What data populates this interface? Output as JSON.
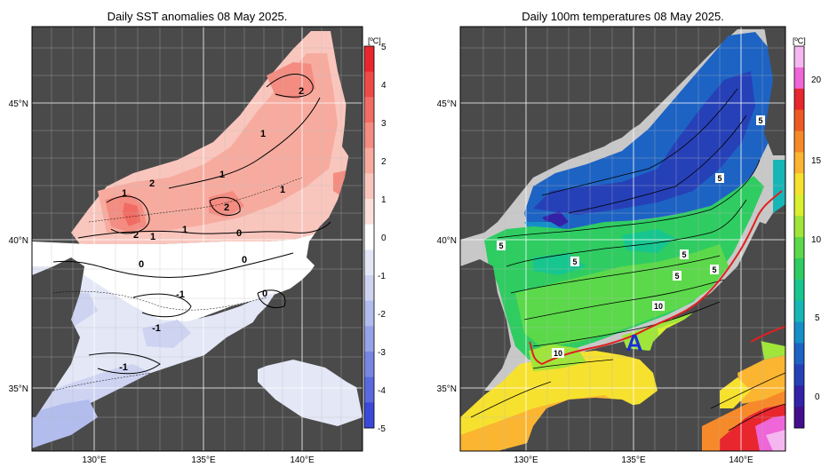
{
  "left_panel": {
    "title": "Daily SST anomalies 08 May 2025.",
    "colorbar": {
      "unit": "[ºC]",
      "ticks": [
        "5",
        "4",
        "3",
        "2",
        "1",
        "0",
        "-1",
        "-2",
        "-3",
        "-4",
        "-5"
      ],
      "colors_top_to_bottom": [
        "#e8262e",
        "#ee4a47",
        "#f26c63",
        "#f48c81",
        "#f7ab9f",
        "#f9c6bd",
        "#fbe0da",
        "#ffffff",
        "#e4e7f6",
        "#cdd3f1",
        "#b2bced",
        "#96a3e8",
        "#7886e2",
        "#5a69dd",
        "#3a49d7"
      ]
    },
    "contour_labels": [
      "2",
      "1",
      "1",
      "2",
      "1",
      "2",
      "1",
      "1",
      "2",
      "1",
      "0",
      "0",
      "0",
      "-1",
      "-1",
      "-1",
      "0"
    ],
    "lat_labels": [
      "45°N",
      "40°N",
      "35°N"
    ],
    "lon_labels": [
      "130°E",
      "135°E",
      "140°E"
    ]
  },
  "right_panel": {
    "title": "Daily 100m temperatures 08 May 2025.",
    "colorbar": {
      "unit": "[ºC]",
      "ticks": [
        "20",
        "15",
        "10",
        "5",
        "0"
      ],
      "colors_top_to_bottom": [
        "#f5b7f0",
        "#ee66d8",
        "#e8262e",
        "#ef5a23",
        "#f6892a",
        "#fbb531",
        "#f6e12f",
        "#d9ef30",
        "#9fe53a",
        "#5bd94a",
        "#2fcc62",
        "#17c68f",
        "#16b6b7",
        "#168fc7",
        "#1d63c4",
        "#2640b8",
        "#3322a8",
        "#430e8e"
      ]
    },
    "contour_labels": [
      "5",
      "5",
      "5",
      "5",
      "5",
      "5",
      "5",
      "10",
      "10"
    ],
    "marker_label": "A",
    "lat_labels": [
      "45°N",
      "40°N",
      "35°N"
    ],
    "lon_labels": [
      "130°E",
      "135°E",
      "140°E"
    ],
    "kuroshio_color": "#e02020",
    "marker_color": "#1a2fd6"
  },
  "colors": {
    "land": "#4a4a4a",
    "shelf_gray": "#c8c8c8",
    "grid": "#ffffff"
  }
}
